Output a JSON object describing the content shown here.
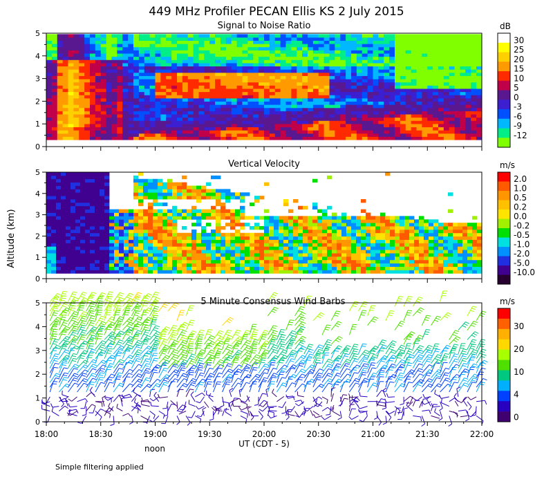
{
  "figure_title": "449 MHz Profiler PECAN Ellis KS  2 July 2015",
  "footnote": "Simple filtering applied",
  "noon_label": "noon",
  "chart_data": [
    {
      "type": "heatmap",
      "title": "Signal to Noise Ratio",
      "variable": "snr",
      "ylabel": "Altitude (km)",
      "ylim": [
        0,
        5
      ],
      "yticks": [
        "0",
        "1",
        "2",
        "3",
        "4",
        "5"
      ],
      "xlabel": "UT  (CDT - 5)",
      "xticks": [
        "18:00",
        "18:30",
        "19:00",
        "19:30",
        "20:00",
        "20:30",
        "21:00",
        "21:30",
        "22:00"
      ],
      "xlim_hours": [
        18,
        22
      ],
      "colorbar": {
        "unit": "dB",
        "labels": [
          "30",
          "25",
          "20",
          "15",
          "10",
          "5",
          "0",
          "-3",
          "-6",
          "-9",
          "-12"
        ],
        "colors": [
          "#ffffff",
          "#ffff00",
          "#ffd000",
          "#ff9a00",
          "#ff2a00",
          "#c00048",
          "#5a1890",
          "#3b1fd0",
          "#0050ff",
          "#00b8ff",
          "#00ee88",
          "#80ff00"
        ]
      }
    },
    {
      "type": "heatmap",
      "title": "Vertical Velocity",
      "variable": "w",
      "ylim": [
        0,
        5
      ],
      "yticks": [
        "0",
        "1",
        "2",
        "3",
        "4",
        "5"
      ],
      "colorbar": {
        "unit": "m/s",
        "labels": [
          "2.0",
          "1.0",
          "0.5",
          "0.2",
          "0.0",
          "-0.2",
          "-0.5",
          "-1.0",
          "-2.0",
          "-5.0",
          "-10.0"
        ],
        "colors": [
          "#ff0000",
          "#ff5a00",
          "#ff9600",
          "#ffc000",
          "#ffe400",
          "#a0f000",
          "#00e000",
          "#00e0e0",
          "#0090ff",
          "#2030e0",
          "#400090",
          "#280030"
        ]
      }
    },
    {
      "type": "scatter",
      "title": "5 Minute Consensus Wind Barbs",
      "variable": "wind_speed",
      "ylim": [
        0,
        5
      ],
      "yticks": [
        "0",
        "1",
        "2",
        "3",
        "4",
        "5"
      ],
      "colorbar": {
        "unit": "m/s",
        "labels": [
          "30",
          "20",
          "10",
          "4",
          "0"
        ],
        "colors": [
          "#ff0000",
          "#ff6000",
          "#ffb000",
          "#ffd800",
          "#a8ff00",
          "#50e000",
          "#00c880",
          "#00b0ff",
          "#0040ff",
          "#2800c0",
          "#400070"
        ]
      }
    }
  ]
}
